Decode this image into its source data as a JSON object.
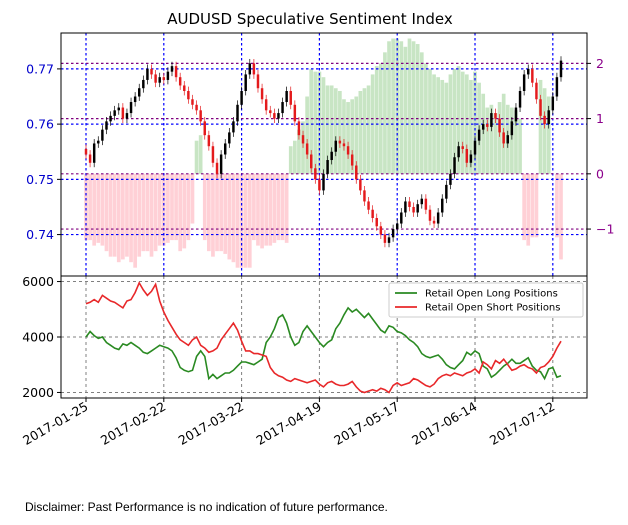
{
  "colors": {
    "bull_candle": "#000000",
    "bear_candle": "#e41a1c",
    "sentiment_pos": "#b5dcb0",
    "sentiment_neg": "#ffc0c8",
    "long_line": "#2a8a22",
    "short_line": "#e8282a",
    "ytick_left": "#0000cc",
    "ytick_right": "#8b008b",
    "grid_blue": "#0000ff",
    "grid_purple": "#800080"
  },
  "chart_data": [
    {
      "type": "candlestick",
      "title": "AUDUSD Speculative Sentiment Index",
      "ylim": [
        0.7325,
        0.7765
      ],
      "yticks": [
        0.74,
        0.75,
        0.76,
        0.77
      ],
      "ytick_labels": [
        "0.74",
        "0.75",
        "0.76",
        "0.77"
      ],
      "y2lim": [
        -1.85,
        2.55
      ],
      "y2ticks": [
        -1,
        0,
        1,
        2
      ],
      "y2tick_labels": [
        "−1",
        "0",
        "1",
        "2"
      ],
      "xticks": [
        "2017-01-25",
        "2017-02-22",
        "2017-03-22",
        "2017-04-19",
        "2017-05-17",
        "2017-06-14",
        "2017-07-12"
      ],
      "grid": true,
      "close": [
        0.7545,
        0.753,
        0.7565,
        0.757,
        0.759,
        0.7605,
        0.7615,
        0.7625,
        0.763,
        0.761,
        0.762,
        0.764,
        0.765,
        0.7665,
        0.768,
        0.77,
        0.769,
        0.7675,
        0.7685,
        0.768,
        0.7695,
        0.7705,
        0.7685,
        0.767,
        0.766,
        0.7645,
        0.7635,
        0.7625,
        0.7605,
        0.758,
        0.756,
        0.753,
        0.751,
        0.7545,
        0.7565,
        0.7585,
        0.7605,
        0.7635,
        0.766,
        0.769,
        0.771,
        0.769,
        0.7665,
        0.7645,
        0.7625,
        0.762,
        0.761,
        0.762,
        0.764,
        0.766,
        0.7635,
        0.7605,
        0.758,
        0.7565,
        0.7545,
        0.752,
        0.75,
        0.748,
        0.751,
        0.7535,
        0.755,
        0.757,
        0.7565,
        0.756,
        0.7545,
        0.7525,
        0.75,
        0.748,
        0.746,
        0.7445,
        0.743,
        0.7415,
        0.74,
        0.7385,
        0.7395,
        0.741,
        0.742,
        0.744,
        0.746,
        0.745,
        0.744,
        0.7455,
        0.7465,
        0.7445,
        0.7425,
        0.742,
        0.744,
        0.7465,
        0.749,
        0.751,
        0.754,
        0.756,
        0.7555,
        0.753,
        0.7545,
        0.757,
        0.759,
        0.76,
        0.7595,
        0.762,
        0.761,
        0.7585,
        0.7565,
        0.758,
        0.7605,
        0.763,
        0.766,
        0.769,
        0.77,
        0.7675,
        0.7645,
        0.7615,
        0.76,
        0.7625,
        0.765,
        0.7685,
        0.7715
      ]
    },
    {
      "type": "bar",
      "title": "",
      "y_axis": "right",
      "name": "",
      "values": [
        -1.2,
        -1.2,
        -1.3,
        -1.25,
        -1.3,
        -1.4,
        -1.5,
        -1.5,
        -1.6,
        -1.55,
        -1.5,
        -1.6,
        -1.7,
        -1.5,
        -1.4,
        -1.4,
        -1.5,
        -1.4,
        -1.3,
        -1.3,
        -1.25,
        -1.2,
        -1.2,
        -1.4,
        -1.35,
        -1.2,
        -0.9,
        0.6,
        0.7,
        -1.2,
        -1.4,
        -1.5,
        -1.4,
        -1.4,
        -1.45,
        -1.55,
        -1.6,
        -1.7,
        -1.7,
        -1.7,
        -1.7,
        -1.2,
        -1.3,
        -1.35,
        -1.3,
        -1.3,
        -1.25,
        -1.2,
        -1.2,
        -1.25,
        0.5,
        0.6,
        0.8,
        0.95,
        1.4,
        1.9,
        1.85,
        1.85,
        1.75,
        1.6,
        1.6,
        1.55,
        1.5,
        1.35,
        1.3,
        1.35,
        1.4,
        1.5,
        1.55,
        1.6,
        1.8,
        1.95,
        2.0,
        2.2,
        2.4,
        2.45,
        2.45,
        2.4,
        2.3,
        2.45,
        2.4,
        2.35,
        2.2,
        2.0,
        1.9,
        1.8,
        1.75,
        1.7,
        1.65,
        1.8,
        1.9,
        1.95,
        1.85,
        1.8,
        1.7,
        1.85,
        1.65,
        1.45,
        1.2,
        1.25,
        1.1,
        1.3,
        1.45,
        1.25,
        1.2,
        1.15,
        1.0,
        -1.2,
        -1.3,
        -1.15,
        -1.15,
        1.7,
        1.55,
        1.4,
        0.0,
        -1.15,
        -1.55
      ]
    },
    {
      "type": "line",
      "title": "",
      "ylim": [
        1800,
        6200
      ],
      "yticks": [
        2000,
        4000,
        6000
      ],
      "ytick_labels": [
        "2000",
        "4000",
        "6000"
      ],
      "xticks": [
        "2017-01-25",
        "2017-02-22",
        "2017-03-22",
        "2017-04-19",
        "2017-05-17",
        "2017-06-14",
        "2017-07-12"
      ],
      "grid": true,
      "legend": "upper-right",
      "series": [
        {
          "name": "Retail Open Long Positions",
          "values": [
            4000,
            4200,
            4050,
            3950,
            4000,
            3800,
            3700,
            3600,
            3550,
            3750,
            3700,
            3800,
            3700,
            3600,
            3450,
            3400,
            3500,
            3600,
            3700,
            3650,
            3600,
            3500,
            3250,
            2900,
            2800,
            2750,
            2800,
            3300,
            3500,
            3300,
            2500,
            2650,
            2500,
            2600,
            2700,
            2700,
            2800,
            2950,
            3100,
            3100,
            3050,
            3000,
            3100,
            3200,
            3800,
            4000,
            4300,
            4700,
            4800,
            4500,
            4000,
            3700,
            3800,
            4200,
            4400,
            4200,
            4000,
            3800,
            3650,
            3800,
            3900,
            4300,
            4500,
            4800,
            5050,
            4900,
            5000,
            4850,
            4700,
            4850,
            4650,
            4450,
            4250,
            4150,
            4400,
            4350,
            4200,
            4150,
            4050,
            3900,
            3800,
            3650,
            3400,
            3300,
            3250,
            3300,
            3350,
            3200,
            3000,
            2900,
            2850,
            3000,
            3150,
            3450,
            3350,
            3500,
            3400,
            2950,
            2850,
            2550,
            2650,
            2800,
            2950,
            3050,
            3200,
            3050,
            3050,
            3150,
            3250,
            2950,
            2800,
            2750,
            2500,
            2850,
            2900,
            2550,
            2600
          ]
        },
        {
          "name": "Retail Open Short Positions",
          "values": [
            5200,
            5250,
            5350,
            5250,
            5500,
            5400,
            5300,
            5250,
            5150,
            5050,
            5300,
            5350,
            5600,
            5950,
            5700,
            5500,
            5650,
            5900,
            5300,
            4900,
            4600,
            4350,
            4100,
            3900,
            3800,
            3700,
            3900,
            4000,
            3700,
            3600,
            3450,
            3500,
            3600,
            3900,
            4100,
            4300,
            4500,
            4250,
            3850,
            3500,
            3500,
            3400,
            3400,
            3350,
            3300,
            2900,
            2700,
            2600,
            2550,
            2450,
            2400,
            2500,
            2450,
            2400,
            2350,
            2400,
            2450,
            2300,
            2200,
            2350,
            2400,
            2300,
            2250,
            2250,
            2300,
            2400,
            2200,
            2050,
            2000,
            2050,
            2100,
            2050,
            2150,
            2100,
            2000,
            2250,
            2350,
            2250,
            2300,
            2350,
            2500,
            2450,
            2350,
            2250,
            2200,
            2300,
            2500,
            2600,
            2650,
            2600,
            2700,
            2650,
            2600,
            2700,
            2750,
            2850,
            2700,
            3100,
            3000,
            2850,
            3150,
            3050,
            3200,
            3000,
            2800,
            2850,
            2950,
            3000,
            2900,
            2850,
            2700,
            2900,
            2950,
            3100,
            3300,
            3600,
            3850
          ]
        }
      ]
    }
  ],
  "disclaimer": "Disclaimer: Past Performance is no indication of future performance."
}
